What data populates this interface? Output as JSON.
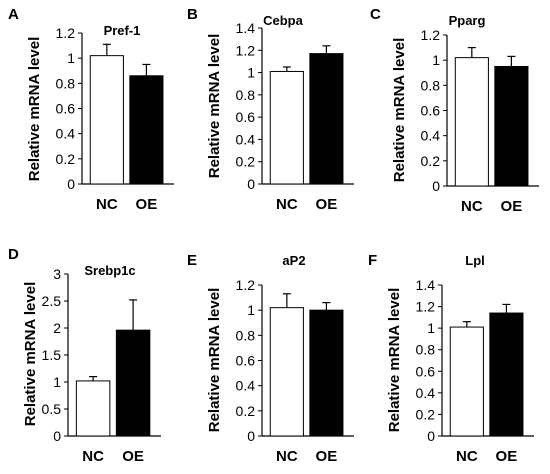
{
  "figure": {
    "ylabel": "Relative mRNA level",
    "colors": {
      "NC": "#ffffff",
      "OE": "#000000",
      "stroke": "#000000"
    }
  },
  "chart_data": [
    {
      "panel": "A",
      "type": "bar",
      "title": "Pref-1",
      "categories": [
        "NC",
        "OE"
      ],
      "values": [
        1.02,
        0.86
      ],
      "errors": [
        0.09,
        0.09
      ],
      "ylabel": "Relative mRNA level",
      "ylim": [
        0,
        1.2
      ],
      "yticks": [
        0,
        0.2,
        0.4,
        0.6,
        0.8,
        1,
        1.2
      ],
      "ytick_labels": [
        "0",
        "0.2",
        "0.4",
        "0.6",
        "0.8",
        "1",
        "1.2"
      ],
      "grid": false
    },
    {
      "panel": "B",
      "type": "bar",
      "title": "Cebpa",
      "categories": [
        "NC",
        "OE"
      ],
      "values": [
        1.01,
        1.17
      ],
      "errors": [
        0.04,
        0.07
      ],
      "ylabel": "Relative mRNA level",
      "ylim": [
        0,
        1.4
      ],
      "yticks": [
        0,
        0.2,
        0.4,
        0.6,
        0.8,
        1,
        1.2,
        1.4
      ],
      "ytick_labels": [
        "0",
        "0.2",
        "0.4",
        "0.6",
        "0.8",
        "1",
        "1.2",
        "1.4"
      ],
      "grid": false
    },
    {
      "panel": "C",
      "type": "bar",
      "title": "Pparg",
      "categories": [
        "NC",
        "OE"
      ],
      "values": [
        1.02,
        0.95
      ],
      "errors": [
        0.08,
        0.08
      ],
      "ylabel": "Relative mRNA level",
      "ylim": [
        0,
        1.2
      ],
      "yticks": [
        0,
        0.2,
        0.4,
        0.6,
        0.8,
        1,
        1.2
      ],
      "ytick_labels": [
        "0",
        "0.2",
        "0.4",
        "0.6",
        "0.8",
        "1",
        "1.2"
      ],
      "grid": false
    },
    {
      "panel": "D",
      "type": "bar",
      "title": "Srebp1c",
      "categories": [
        "NC",
        "OE"
      ],
      "values": [
        1.02,
        1.96
      ],
      "errors": [
        0.08,
        0.56
      ],
      "ylabel": "Relative mRNA level",
      "ylim": [
        0,
        3
      ],
      "yticks": [
        0,
        0.5,
        1,
        1.5,
        2,
        2.5,
        3
      ],
      "ytick_labels": [
        "0",
        "0.5",
        "1",
        "1.5",
        "2",
        "2.5",
        "3"
      ],
      "grid": false
    },
    {
      "panel": "E",
      "type": "bar",
      "title": "aP2",
      "categories": [
        "NC",
        "OE"
      ],
      "values": [
        1.02,
        1.0
      ],
      "errors": [
        0.11,
        0.06
      ],
      "ylabel": "Relative mRNA level",
      "ylim": [
        0,
        1.2
      ],
      "yticks": [
        0,
        0.2,
        0.4,
        0.6,
        0.8,
        1,
        1.2
      ],
      "ytick_labels": [
        "0",
        "0.2",
        "0.4",
        "0.6",
        "0.8",
        "1",
        "1.2"
      ],
      "grid": false
    },
    {
      "panel": "F",
      "type": "bar",
      "title": "Lpl",
      "categories": [
        "NC",
        "OE"
      ],
      "values": [
        1.01,
        1.14
      ],
      "errors": [
        0.05,
        0.08
      ],
      "ylabel": "Relative mRNA level",
      "ylim": [
        0,
        1.4
      ],
      "yticks": [
        0,
        0.2,
        0.4,
        0.6,
        0.8,
        1,
        1.2,
        1.4
      ],
      "ytick_labels": [
        "0",
        "0.2",
        "0.4",
        "0.6",
        "0.8",
        "1",
        "1.2",
        "1.4"
      ],
      "grid": false
    }
  ]
}
